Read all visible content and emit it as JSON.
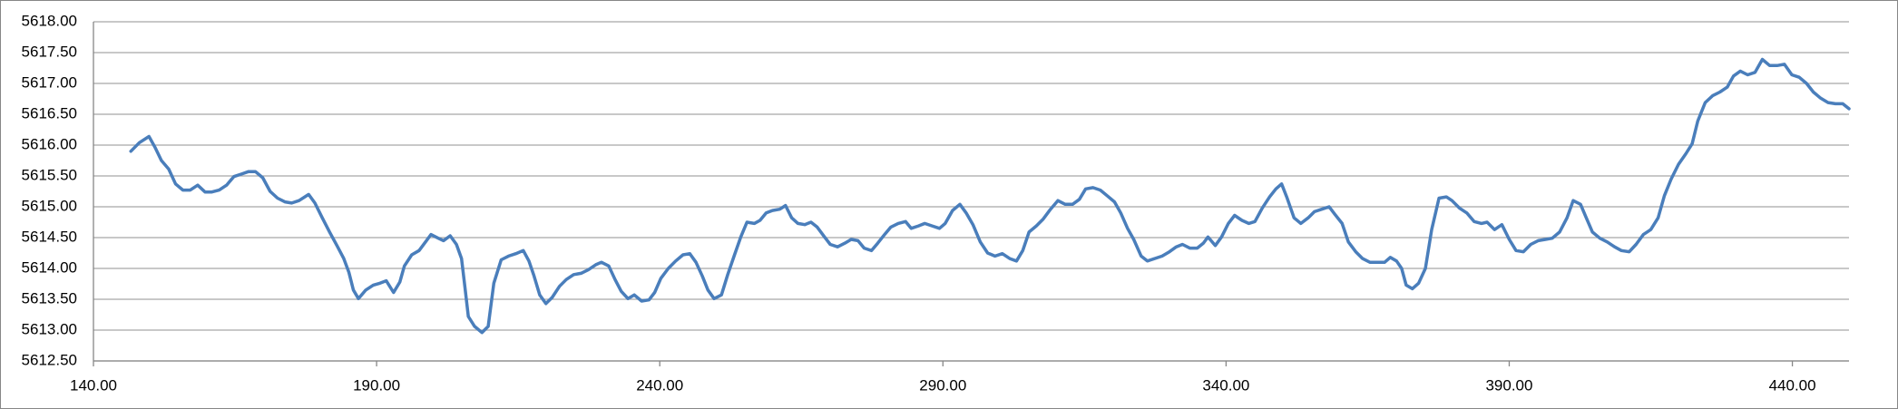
{
  "chart_data": {
    "type": "line",
    "color": "#4a7ebb",
    "grid": true,
    "xlim": [
      140,
      450
    ],
    "ylim": [
      5612.5,
      5618
    ],
    "xticks": [
      {
        "value": 140,
        "label": "140.00"
      },
      {
        "value": 190,
        "label": "190.00"
      },
      {
        "value": 240,
        "label": "240.00"
      },
      {
        "value": 290,
        "label": "290.00"
      },
      {
        "value": 340,
        "label": "340.00"
      },
      {
        "value": 390,
        "label": "390.00"
      },
      {
        "value": 440,
        "label": "440.00"
      }
    ],
    "yticks": [
      {
        "value": 5612.5,
        "label": "5612.50"
      },
      {
        "value": 5613,
        "label": "5613.00"
      },
      {
        "value": 5613.5,
        "label": "5613.50"
      },
      {
        "value": 5614,
        "label": "5614.00"
      },
      {
        "value": 5614.5,
        "label": "5614.50"
      },
      {
        "value": 5615,
        "label": "5615.00"
      },
      {
        "value": 5615.5,
        "label": "5615.50"
      },
      {
        "value": 5616,
        "label": "5616.00"
      },
      {
        "value": 5616.5,
        "label": "5616.50"
      },
      {
        "value": 5617,
        "label": "5617.00"
      },
      {
        "value": 5617.5,
        "label": "5617.50"
      },
      {
        "value": 5618,
        "label": "5618.00"
      }
    ],
    "x": [
      146.6,
      148.1,
      149.8,
      150.9,
      152.0,
      153.3,
      154.5,
      155.8,
      157.1,
      158.4,
      159.7,
      160.9,
      162.2,
      163.5,
      164.8,
      166.1,
      167.4,
      168.6,
      169.9,
      171.2,
      172.5,
      173.8,
      175.0,
      176.3,
      178.0,
      179.1,
      180.4,
      181.7,
      183.0,
      184.2,
      185.1,
      185.9,
      186.8,
      188.1,
      189.4,
      190.6,
      191.7,
      193.0,
      194.1,
      194.9,
      196.2,
      197.5,
      198.8,
      199.6,
      200.9,
      201.8,
      203.0,
      204.1,
      205.0,
      205.6,
      206.2,
      207.3,
      208.6,
      209.7,
      210.7,
      212.0,
      213.3,
      214.6,
      215.9,
      216.9,
      217.8,
      218.8,
      219.9,
      221.0,
      222.3,
      223.5,
      224.8,
      226.1,
      227.4,
      228.7,
      229.7,
      231.0,
      232.1,
      233.2,
      234.4,
      235.5,
      236.8,
      238.1,
      239.1,
      240.2,
      241.5,
      242.8,
      244.1,
      245.3,
      246.4,
      247.5,
      248.5,
      249.6,
      250.9,
      252.0,
      253.2,
      254.3,
      255.4,
      256.7,
      257.7,
      258.8,
      259.9,
      261.2,
      262.2,
      263.3,
      264.4,
      265.6,
      266.7,
      267.8,
      269.1,
      270.1,
      271.4,
      272.7,
      273.8,
      275.0,
      276.1,
      277.4,
      278.5,
      279.7,
      280.8,
      282.1,
      283.4,
      284.4,
      285.7,
      286.8,
      288.1,
      289.4,
      290.4,
      291.7,
      293.0,
      294.1,
      295.3,
      296.6,
      297.9,
      299.2,
      300.5,
      301.8,
      303.0,
      304.1,
      305.2,
      306.5,
      307.7,
      309.0,
      310.3,
      311.6,
      312.9,
      314.1,
      315.2,
      316.5,
      317.8,
      319.0,
      320.3,
      321.4,
      322.6,
      323.7,
      325.0,
      326.1,
      327.4,
      328.7,
      330.0,
      331.2,
      332.3,
      333.6,
      334.9,
      336.0,
      336.8,
      338.1,
      339.2,
      340.4,
      341.5,
      342.8,
      344.0,
      345.1,
      346.4,
      347.7,
      348.8,
      349.8,
      350.7,
      352.0,
      353.2,
      354.5,
      355.6,
      356.9,
      358.2,
      359.2,
      360.5,
      361.6,
      362.9,
      364.1,
      365.4,
      366.7,
      368.0,
      369.0,
      370.1,
      371.0,
      371.8,
      372.9,
      374.0,
      375.2,
      376.3,
      377.6,
      378.9,
      379.9,
      381.2,
      382.5,
      383.8,
      385.1,
      386.1,
      387.4,
      388.7,
      390.0,
      391.2,
      392.5,
      393.8,
      395.1,
      396.4,
      397.6,
      398.9,
      400.2,
      401.3,
      402.6,
      403.6,
      404.7,
      406.0,
      407.3,
      408.6,
      409.8,
      411.2,
      412.4,
      413.7,
      415.0,
      416.3,
      417.4,
      418.6,
      419.9,
      421.2,
      422.3,
      423.3,
      424.6,
      425.9,
      427.2,
      428.5,
      429.6,
      430.8,
      432.1,
      433.4,
      434.7,
      436.0,
      437.3,
      438.6,
      439.9,
      441.2,
      442.5,
      443.7,
      445.0,
      446.3,
      447.6,
      448.9,
      450.0
    ],
    "values": [
      5615.9,
      5616.04,
      5616.14,
      5615.96,
      5615.75,
      5615.61,
      5615.37,
      5615.27,
      5615.27,
      5615.35,
      5615.24,
      5615.24,
      5615.27,
      5615.35,
      5615.49,
      5615.53,
      5615.57,
      5615.57,
      5615.47,
      5615.25,
      5615.14,
      5615.08,
      5615.06,
      5615.1,
      5615.2,
      5615.06,
      5614.82,
      5614.59,
      5614.37,
      5614.16,
      5613.94,
      5613.65,
      5613.51,
      5613.65,
      5613.73,
      5613.76,
      5613.8,
      5613.61,
      5613.78,
      5614.04,
      5614.22,
      5614.29,
      5614.45,
      5614.55,
      5614.49,
      5614.45,
      5614.53,
      5614.39,
      5614.16,
      5613.69,
      5613.22,
      5613.06,
      5612.96,
      5613.06,
      5613.76,
      5614.14,
      5614.2,
      5614.24,
      5614.29,
      5614.12,
      5613.88,
      5613.57,
      5613.43,
      5613.53,
      5613.71,
      5613.82,
      5613.9,
      5613.92,
      5613.98,
      5614.06,
      5614.1,
      5614.04,
      5613.82,
      5613.63,
      5613.51,
      5613.57,
      5613.47,
      5613.49,
      5613.61,
      5613.84,
      5614.0,
      5614.12,
      5614.22,
      5614.24,
      5614.1,
      5613.88,
      5613.65,
      5613.51,
      5613.57,
      5613.9,
      5614.22,
      5614.51,
      5614.75,
      5614.73,
      5614.78,
      5614.9,
      5614.94,
      5614.96,
      5615.02,
      5614.82,
      5614.73,
      5614.71,
      5614.75,
      5614.67,
      5614.51,
      5614.39,
      5614.35,
      5614.41,
      5614.47,
      5614.45,
      5614.33,
      5614.29,
      5614.41,
      5614.55,
      5614.67,
      5614.73,
      5614.76,
      5614.65,
      5614.69,
      5614.73,
      5614.69,
      5614.65,
      5614.73,
      5614.94,
      5615.04,
      5614.9,
      5614.71,
      5614.43,
      5614.25,
      5614.2,
      5614.24,
      5614.16,
      5614.12,
      5614.29,
      5614.59,
      5614.69,
      5614.8,
      5614.96,
      5615.1,
      5615.04,
      5615.04,
      5615.12,
      5615.29,
      5615.31,
      5615.27,
      5615.18,
      5615.08,
      5614.9,
      5614.65,
      5614.47,
      5614.2,
      5614.12,
      5614.16,
      5614.2,
      5614.27,
      5614.35,
      5614.39,
      5614.33,
      5614.33,
      5614.41,
      5614.51,
      5614.37,
      5614.51,
      5614.73,
      5614.86,
      5614.78,
      5614.73,
      5614.76,
      5614.98,
      5615.16,
      5615.29,
      5615.37,
      5615.16,
      5614.82,
      5614.73,
      5614.82,
      5614.92,
      5614.96,
      5615.0,
      5614.88,
      5614.73,
      5614.43,
      5614.27,
      5614.16,
      5614.1,
      5614.1,
      5614.1,
      5614.18,
      5614.12,
      5614.0,
      5613.73,
      5613.67,
      5613.76,
      5614.0,
      5614.63,
      5615.14,
      5615.16,
      5615.1,
      5614.98,
      5614.9,
      5614.76,
      5614.73,
      5614.75,
      5614.63,
      5614.71,
      5614.47,
      5614.29,
      5614.27,
      5614.39,
      5614.45,
      5614.47,
      5614.49,
      5614.59,
      5614.82,
      5615.1,
      5615.04,
      5614.82,
      5614.59,
      5614.49,
      5614.43,
      5614.35,
      5614.29,
      5614.27,
      5614.39,
      5614.55,
      5614.63,
      5614.82,
      5615.18,
      5615.45,
      5615.69,
      5615.86,
      5616.02,
      5616.39,
      5616.69,
      5616.8,
      5616.86,
      5616.94,
      5617.12,
      5617.2,
      5617.14,
      5617.18,
      5617.39,
      5617.29,
      5617.29,
      5617.31,
      5617.14,
      5617.1,
      5617.0,
      5616.86,
      5616.76,
      5616.69,
      5616.67,
      5616.67,
      5616.59
    ]
  }
}
